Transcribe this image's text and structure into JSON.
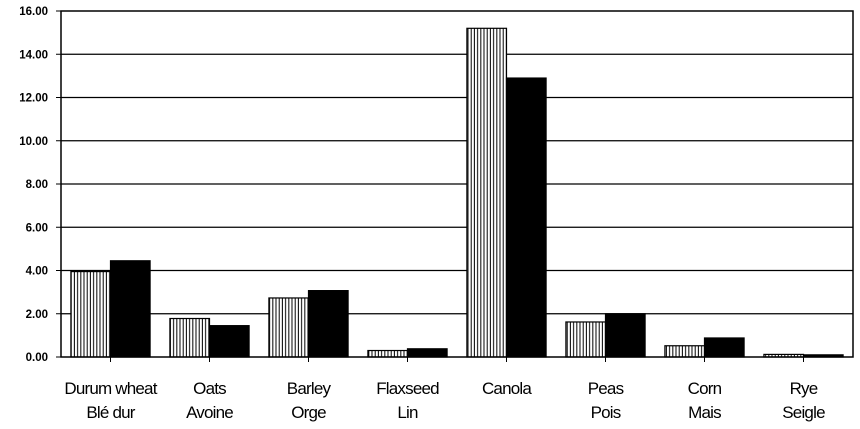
{
  "chart_data": {
    "type": "bar",
    "title": "",
    "xlabel": "",
    "ylabel": "",
    "ylim": [
      0,
      16
    ],
    "ytick_step": 2,
    "grid": "horizontal",
    "legend": "none",
    "categories": [
      [
        "Durum wheat",
        "Blé dur"
      ],
      [
        "Oats",
        "Avoine"
      ],
      [
        "Barley",
        "Orge"
      ],
      [
        "Flaxseed",
        "Lin"
      ],
      [
        "Canola",
        ""
      ],
      [
        "Peas",
        "Pois"
      ],
      [
        "Corn",
        "Mais"
      ],
      [
        "Rye",
        "Seigle"
      ]
    ],
    "series": [
      {
        "style": "vertical-hatch",
        "color": "#ffffff",
        "values": [
          3.95,
          1.78,
          2.73,
          0.3,
          15.2,
          1.62,
          0.52,
          0.12
        ]
      },
      {
        "style": "solid",
        "color": "#000000",
        "values": [
          4.45,
          1.45,
          3.07,
          0.38,
          12.9,
          2.0,
          0.88,
          0.1
        ]
      }
    ]
  }
}
